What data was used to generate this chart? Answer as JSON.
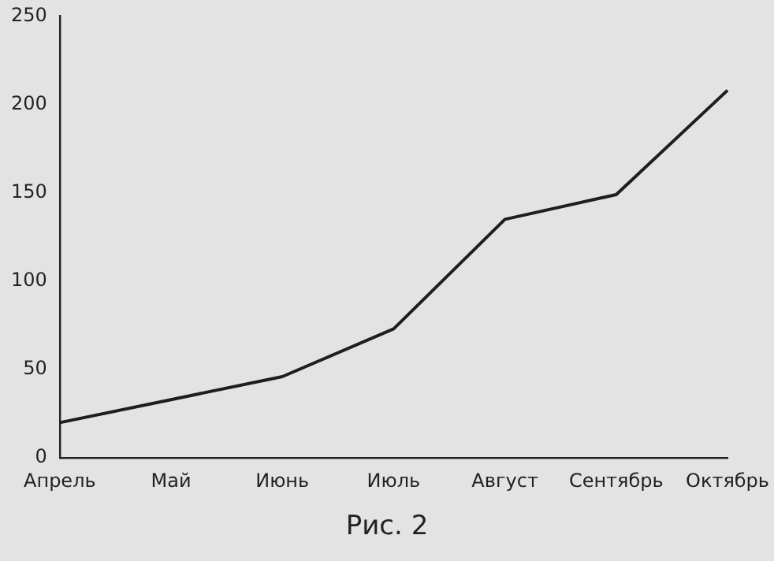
{
  "chart_data": {
    "type": "line",
    "categories": [
      "Апрель",
      "Май",
      "Июнь",
      "Июль",
      "Август",
      "Сентябрь",
      "Октябрь"
    ],
    "values": [
      20,
      33,
      46,
      73,
      135,
      149,
      208
    ],
    "color": "#1e1e1e",
    "ylim": [
      0,
      250
    ],
    "yticks": [
      0,
      50,
      100,
      150,
      200,
      250
    ],
    "grid": false,
    "legend": false,
    "marker": "none",
    "line_style": "solid",
    "annotations": [
      "Рис. 2"
    ]
  }
}
